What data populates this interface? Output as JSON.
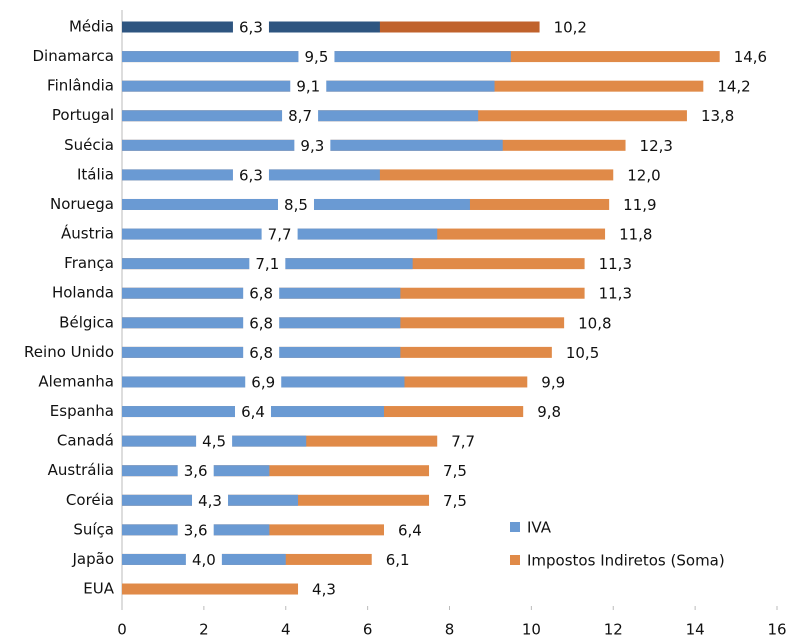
{
  "chart_data": {
    "type": "bar",
    "orientation": "horizontal",
    "overlay": true,
    "categories": [
      "Média",
      "Dinamarca",
      "Finlândia",
      "Portugal",
      "Suécia",
      "Itália",
      "Noruega",
      "Áustria",
      "França",
      "Holanda",
      "Bélgica",
      "Reino Unido",
      "Alemanha",
      "Espanha",
      "Canadá",
      "Austrália",
      "Coréia",
      "Suíça",
      "Japão",
      "EUA"
    ],
    "series": [
      {
        "name": "IVA",
        "color": "#6a9ad3",
        "colors": [
          "#2e5580",
          "#6a9ad3",
          "#6a9ad3",
          "#6a9ad3",
          "#6a9ad3",
          "#6a9ad3",
          "#6a9ad3",
          "#6a9ad3",
          "#6a9ad3",
          "#6a9ad3",
          "#6a9ad3",
          "#6a9ad3",
          "#6a9ad3",
          "#6a9ad3",
          "#6a9ad3",
          "#6a9ad3",
          "#6a9ad3",
          "#6a9ad3",
          "#6a9ad3",
          "#6a9ad3"
        ],
        "values": [
          6.3,
          9.5,
          9.1,
          8.7,
          9.3,
          6.3,
          8.5,
          7.7,
          7.1,
          6.8,
          6.8,
          6.8,
          6.9,
          6.4,
          4.5,
          3.6,
          4.3,
          3.6,
          4.0,
          null
        ],
        "value_labels": [
          "6,3",
          "9,5",
          "9,1",
          "8,7",
          "9,3",
          "6,3",
          "8,5",
          "7,7",
          "7,1",
          "6,8",
          "6,8",
          "6,8",
          "6,9",
          "6,4",
          "4,5",
          "3,6",
          "4,3",
          "3,6",
          "4,0",
          null
        ]
      },
      {
        "name": "Impostos Indiretos (Soma)",
        "color": "#e08a48",
        "colors": [
          "#c0622c",
          "#e08a48",
          "#e08a48",
          "#e08a48",
          "#e08a48",
          "#e08a48",
          "#e08a48",
          "#e08a48",
          "#e08a48",
          "#e08a48",
          "#e08a48",
          "#e08a48",
          "#e08a48",
          "#e08a48",
          "#e08a48",
          "#e08a48",
          "#e08a48",
          "#e08a48",
          "#e08a48",
          "#e08a48"
        ],
        "values": [
          10.2,
          14.6,
          14.2,
          13.8,
          12.3,
          12.0,
          11.9,
          11.8,
          11.3,
          11.3,
          10.8,
          10.5,
          9.9,
          9.8,
          7.7,
          7.5,
          7.5,
          6.4,
          6.1,
          4.3
        ],
        "value_labels": [
          "10,2",
          "14,6",
          "14,2",
          "13,8",
          "12,3",
          "12,0",
          "11,9",
          "11,8",
          "11,3",
          "11,3",
          "10,8",
          "10,5",
          "9,9",
          "9,8",
          "7,7",
          "7,5",
          "7,5",
          "6,4",
          "6,1",
          "4,3"
        ]
      }
    ],
    "xlim": [
      0,
      16
    ],
    "xticks": [
      0,
      2,
      4,
      6,
      8,
      10,
      12,
      14,
      16
    ],
    "grid": false,
    "legend": "lower right"
  }
}
